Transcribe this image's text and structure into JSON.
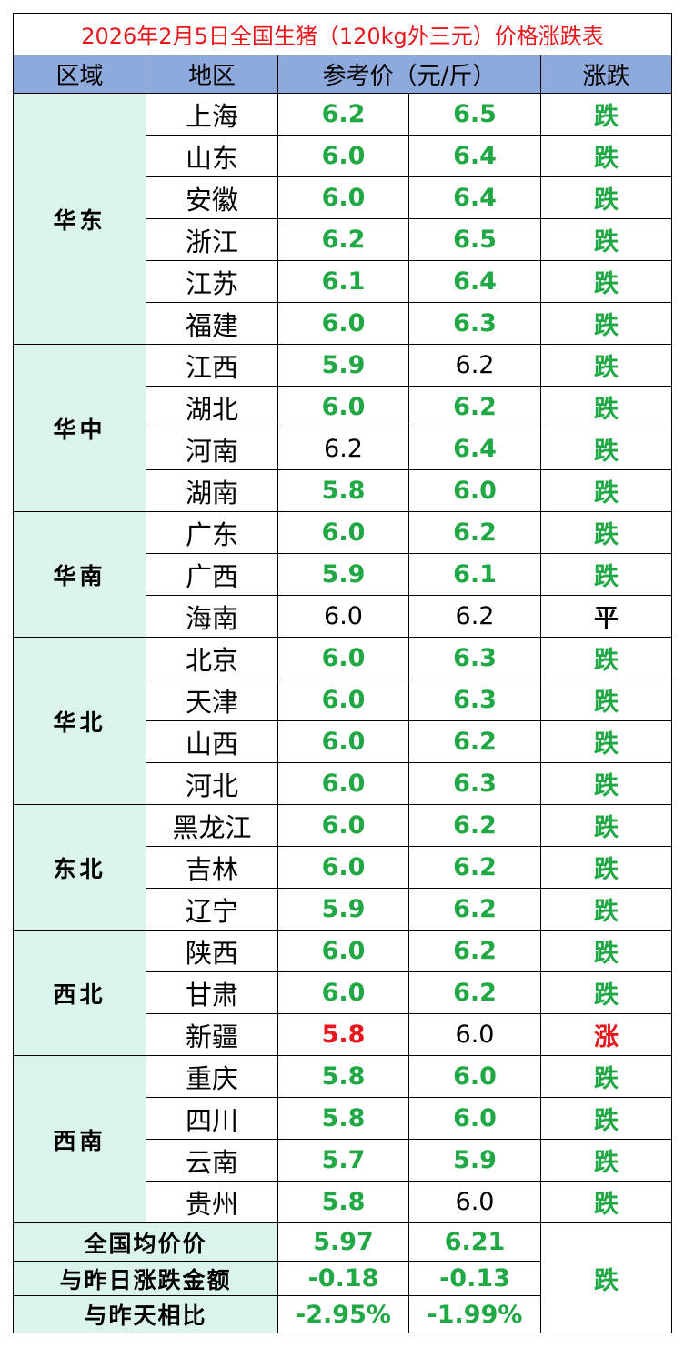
{
  "title": "2026年2月5日全国生猪（120kg外三元）价格涨跌表",
  "headers": {
    "region": "区域",
    "area": "地区",
    "price": "参考价（元/斤）",
    "trend": "涨跌"
  },
  "groups": [
    {
      "region": "华东",
      "rows": [
        {
          "area": "上海",
          "p1": "6.2",
          "p1_style": "down",
          "p2": "6.5",
          "p2_style": "down",
          "trend": "跌",
          "trend_style": "down"
        },
        {
          "area": "山东",
          "p1": "6.0",
          "p1_style": "down",
          "p2": "6.4",
          "p2_style": "down",
          "trend": "跌",
          "trend_style": "down"
        },
        {
          "area": "安徽",
          "p1": "6.0",
          "p1_style": "down",
          "p2": "6.4",
          "p2_style": "down",
          "trend": "跌",
          "trend_style": "down"
        },
        {
          "area": "浙江",
          "p1": "6.2",
          "p1_style": "down",
          "p2": "6.5",
          "p2_style": "down",
          "trend": "跌",
          "trend_style": "down"
        },
        {
          "area": "江苏",
          "p1": "6.1",
          "p1_style": "down",
          "p2": "6.4",
          "p2_style": "down",
          "trend": "跌",
          "trend_style": "down"
        },
        {
          "area": "福建",
          "p1": "6.0",
          "p1_style": "down",
          "p2": "6.3",
          "p2_style": "down",
          "trend": "跌",
          "trend_style": "down"
        }
      ]
    },
    {
      "region": "华中",
      "rows": [
        {
          "area": "江西",
          "p1": "5.9",
          "p1_style": "down",
          "p2": "6.2",
          "p2_style": "plain",
          "trend": "跌",
          "trend_style": "down"
        },
        {
          "area": "湖北",
          "p1": "6.0",
          "p1_style": "down",
          "p2": "6.2",
          "p2_style": "down",
          "trend": "跌",
          "trend_style": "down"
        },
        {
          "area": "河南",
          "p1": "6.2",
          "p1_style": "plain",
          "p2": "6.4",
          "p2_style": "down",
          "trend": "跌",
          "trend_style": "down"
        },
        {
          "area": "湖南",
          "p1": "5.8",
          "p1_style": "down",
          "p2": "6.0",
          "p2_style": "down",
          "trend": "跌",
          "trend_style": "down"
        }
      ]
    },
    {
      "region": "华南",
      "rows": [
        {
          "area": "广东",
          "p1": "6.0",
          "p1_style": "down",
          "p2": "6.2",
          "p2_style": "down",
          "trend": "跌",
          "trend_style": "down"
        },
        {
          "area": "广西",
          "p1": "5.9",
          "p1_style": "down",
          "p2": "6.1",
          "p2_style": "down",
          "trend": "跌",
          "trend_style": "down"
        },
        {
          "area": "海南",
          "p1": "6.0",
          "p1_style": "plain",
          "p2": "6.2",
          "p2_style": "plain",
          "trend": "平",
          "trend_style": "flat"
        }
      ]
    },
    {
      "region": "华北",
      "rows": [
        {
          "area": "北京",
          "p1": "6.0",
          "p1_style": "down",
          "p2": "6.3",
          "p2_style": "down",
          "trend": "跌",
          "trend_style": "down"
        },
        {
          "area": "天津",
          "p1": "6.0",
          "p1_style": "down",
          "p2": "6.3",
          "p2_style": "down",
          "trend": "跌",
          "trend_style": "down"
        },
        {
          "area": "山西",
          "p1": "6.0",
          "p1_style": "down",
          "p2": "6.2",
          "p2_style": "down",
          "trend": "跌",
          "trend_style": "down"
        },
        {
          "area": "河北",
          "p1": "6.0",
          "p1_style": "down",
          "p2": "6.3",
          "p2_style": "down",
          "trend": "跌",
          "trend_style": "down"
        }
      ]
    },
    {
      "region": "东北",
      "rows": [
        {
          "area": "黑龙江",
          "p1": "6.0",
          "p1_style": "down",
          "p2": "6.2",
          "p2_style": "down",
          "trend": "跌",
          "trend_style": "down"
        },
        {
          "area": "吉林",
          "p1": "6.0",
          "p1_style": "down",
          "p2": "6.2",
          "p2_style": "down",
          "trend": "跌",
          "trend_style": "down"
        },
        {
          "area": "辽宁",
          "p1": "5.9",
          "p1_style": "down",
          "p2": "6.2",
          "p2_style": "down",
          "trend": "跌",
          "trend_style": "down"
        }
      ]
    },
    {
      "region": "西北",
      "rows": [
        {
          "area": "陕西",
          "p1": "6.0",
          "p1_style": "down",
          "p2": "6.2",
          "p2_style": "down",
          "trend": "跌",
          "trend_style": "down"
        },
        {
          "area": "甘肃",
          "p1": "6.0",
          "p1_style": "down",
          "p2": "6.2",
          "p2_style": "down",
          "trend": "跌",
          "trend_style": "down"
        },
        {
          "area": "新疆",
          "p1": "5.8",
          "p1_style": "up",
          "p2": "6.0",
          "p2_style": "plain",
          "trend": "涨",
          "trend_style": "up"
        }
      ]
    },
    {
      "region": "西南",
      "rows": [
        {
          "area": "重庆",
          "p1": "5.8",
          "p1_style": "down",
          "p2": "6.0",
          "p2_style": "down",
          "trend": "跌",
          "trend_style": "down"
        },
        {
          "area": "四川",
          "p1": "5.8",
          "p1_style": "down",
          "p2": "6.0",
          "p2_style": "down",
          "trend": "跌",
          "trend_style": "down"
        },
        {
          "area": "云南",
          "p1": "5.7",
          "p1_style": "down",
          "p2": "5.9",
          "p2_style": "down",
          "trend": "跌",
          "trend_style": "down"
        },
        {
          "area": "贵州",
          "p1": "5.8",
          "p1_style": "down",
          "p2": "6.0",
          "p2_style": "plain",
          "trend": "跌",
          "trend_style": "down"
        }
      ]
    }
  ],
  "summary": {
    "avg_label": "全国均价价",
    "avg_p1": "5.97",
    "avg_p2": "6.21",
    "change_label": "与昨日涨跌金额",
    "change_p1": "-0.18",
    "change_p2": "-0.13",
    "pct_label": "与昨天相比",
    "pct_p1": "-2.95%",
    "pct_p2": "-1.99%",
    "trend": "跌"
  },
  "colors": {
    "down": "#20a845",
    "up": "#e8161b",
    "header_bg": "#8ea9db",
    "region_bg": "#dbf3ee"
  }
}
